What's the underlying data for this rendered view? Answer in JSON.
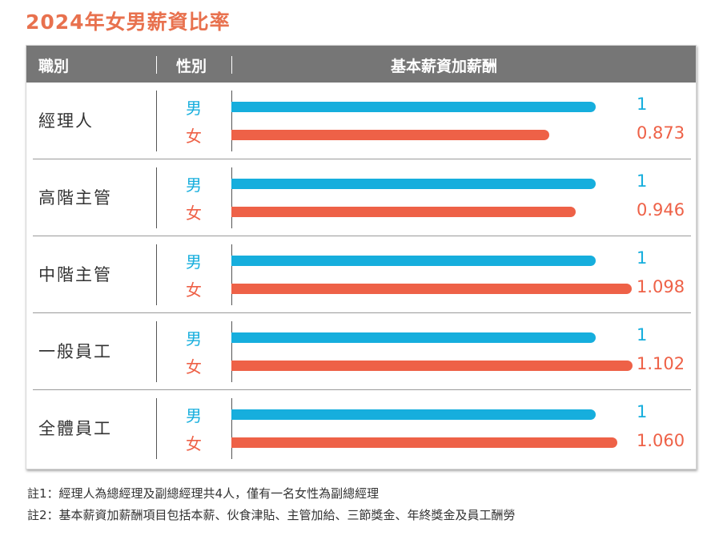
{
  "title": "2024年女男薪資比率",
  "header": {
    "col1": "職別",
    "col2": "性別",
    "col3": "基本薪資加薪酬"
  },
  "colors": {
    "male": "#16aedd",
    "female": "#ee6147",
    "title": "#e8714e",
    "header_bg": "#767676"
  },
  "rows": [
    {
      "role": "經理人",
      "male_label": "男",
      "female_label": "女",
      "male_value": "1",
      "female_value": "0.873"
    },
    {
      "role": "高階主管",
      "male_label": "男",
      "female_label": "女",
      "male_value": "1",
      "female_value": "0.946"
    },
    {
      "role": "中階主管",
      "male_label": "男",
      "female_label": "女",
      "male_value": "1",
      "female_value": "1.098"
    },
    {
      "role": "一般員工",
      "male_label": "男",
      "female_label": "女",
      "male_value": "1",
      "female_value": "1.102"
    },
    {
      "role": "全體員工",
      "male_label": "男",
      "female_label": "女",
      "male_value": "1",
      "female_value": "1.060"
    }
  ],
  "notes": [
    "註1：經理人為總經理及副總經理共4人，僅有一名女性為副總經理",
    "註2：基本薪資加薪酬項目包括本薪、伙食津貼、主管加給、三節獎金、年終獎金及員工酬勞"
  ],
  "chart_data": {
    "type": "bar",
    "orientation": "horizontal",
    "title": "2024年女男薪資比率",
    "categories": [
      "經理人",
      "高階主管",
      "中階主管",
      "一般員工",
      "全體員工"
    ],
    "series": [
      {
        "name": "男",
        "values": [
          1,
          1,
          1,
          1,
          1
        ]
      },
      {
        "name": "女",
        "values": [
          0.873,
          0.946,
          1.098,
          1.102,
          1.06
        ]
      }
    ],
    "xlabel": "基本薪資加薪酬",
    "ylabel": "",
    "grid": false,
    "legend": "none"
  }
}
